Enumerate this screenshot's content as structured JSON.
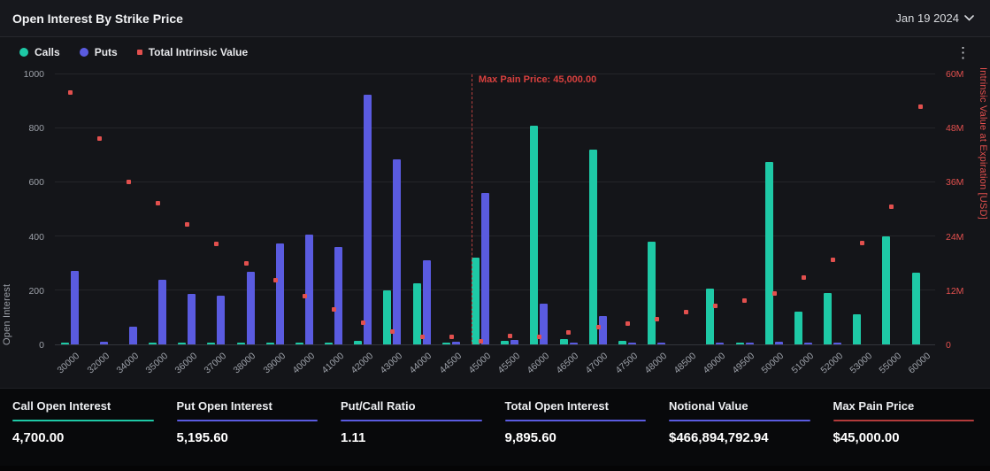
{
  "header": {
    "title": "Open Interest By Strike Price",
    "date_label": "Jan 19 2024"
  },
  "legend": {
    "calls": "Calls",
    "puts": "Puts",
    "intrinsic": "Total Intrinsic Value"
  },
  "chart_data": {
    "type": "bar",
    "title": "Open Interest By Strike Price",
    "categories": [
      "30000",
      "32000",
      "34000",
      "35000",
      "36000",
      "37000",
      "38000",
      "39000",
      "40000",
      "41000",
      "42000",
      "43000",
      "44000",
      "44500",
      "45000",
      "45500",
      "46000",
      "46500",
      "47000",
      "47500",
      "48000",
      "48500",
      "49000",
      "49500",
      "50000",
      "51000",
      "52000",
      "53000",
      "55000",
      "60000"
    ],
    "series": [
      {
        "name": "Calls",
        "color": "#1ec9a6",
        "axis": "left",
        "values": [
          4,
          0,
          0,
          4,
          8,
          2,
          4,
          4,
          6,
          4,
          12,
          200,
          225,
          8,
          320,
          12,
          810,
          20,
          720,
          14,
          380,
          0,
          205,
          2,
          675,
          120,
          190,
          110,
          400,
          265
        ]
      },
      {
        "name": "Puts",
        "color": "#5a5be0",
        "axis": "left",
        "values": [
          272,
          10,
          65,
          240,
          186,
          182,
          270,
          375,
          405,
          360,
          925,
          685,
          310,
          10,
          560,
          15,
          150,
          6,
          105,
          2,
          6,
          0,
          8,
          2,
          10,
          4,
          2,
          0,
          0,
          0
        ]
      }
    ],
    "intrinsic_series": {
      "name": "Total Intrinsic Value",
      "color": "#e2504e",
      "axis": "right",
      "unit": "M USD",
      "values": [
        55.8,
        45.6,
        36.0,
        31.2,
        26.6,
        22.2,
        18.0,
        14.2,
        10.6,
        7.6,
        4.8,
        2.7,
        1.6,
        1.5,
        0.6,
        1.8,
        1.6,
        2.6,
        3.8,
        4.6,
        5.6,
        7.0,
        8.4,
        9.6,
        11.2,
        14.8,
        18.6,
        22.4,
        30.4,
        52.8
      ]
    },
    "left_axis": {
      "label": "Open Interest",
      "ticks": [
        0,
        200,
        400,
        600,
        800,
        1000
      ],
      "max": 1000
    },
    "right_axis": {
      "label": "Intrinsic Value at Expiration [USD]",
      "ticks": [
        "0",
        "12M",
        "24M",
        "36M",
        "48M",
        "60M"
      ],
      "max": 60
    },
    "max_pain": {
      "label": "Max Pain Price: 45,000.00",
      "category": "45000",
      "index": 14
    },
    "legend_position": "top-left",
    "grid": true
  },
  "stats": [
    {
      "label": "Call Open Interest",
      "value": "4,700.00",
      "color": "#1ec9a6"
    },
    {
      "label": "Put Open Interest",
      "value": "5,195.60",
      "color": "#5a5be0"
    },
    {
      "label": "Put/Call Ratio",
      "value": "1.11",
      "color": "#5a5be0"
    },
    {
      "label": "Total Open Interest",
      "value": "9,895.60",
      "color": "#5a5be0"
    },
    {
      "label": "Notional Value",
      "value": "$466,894,792.94",
      "color": "#5a5be0"
    },
    {
      "label": "Max Pain Price",
      "value": "$45,000.00",
      "color": "#b23b3b"
    }
  ]
}
